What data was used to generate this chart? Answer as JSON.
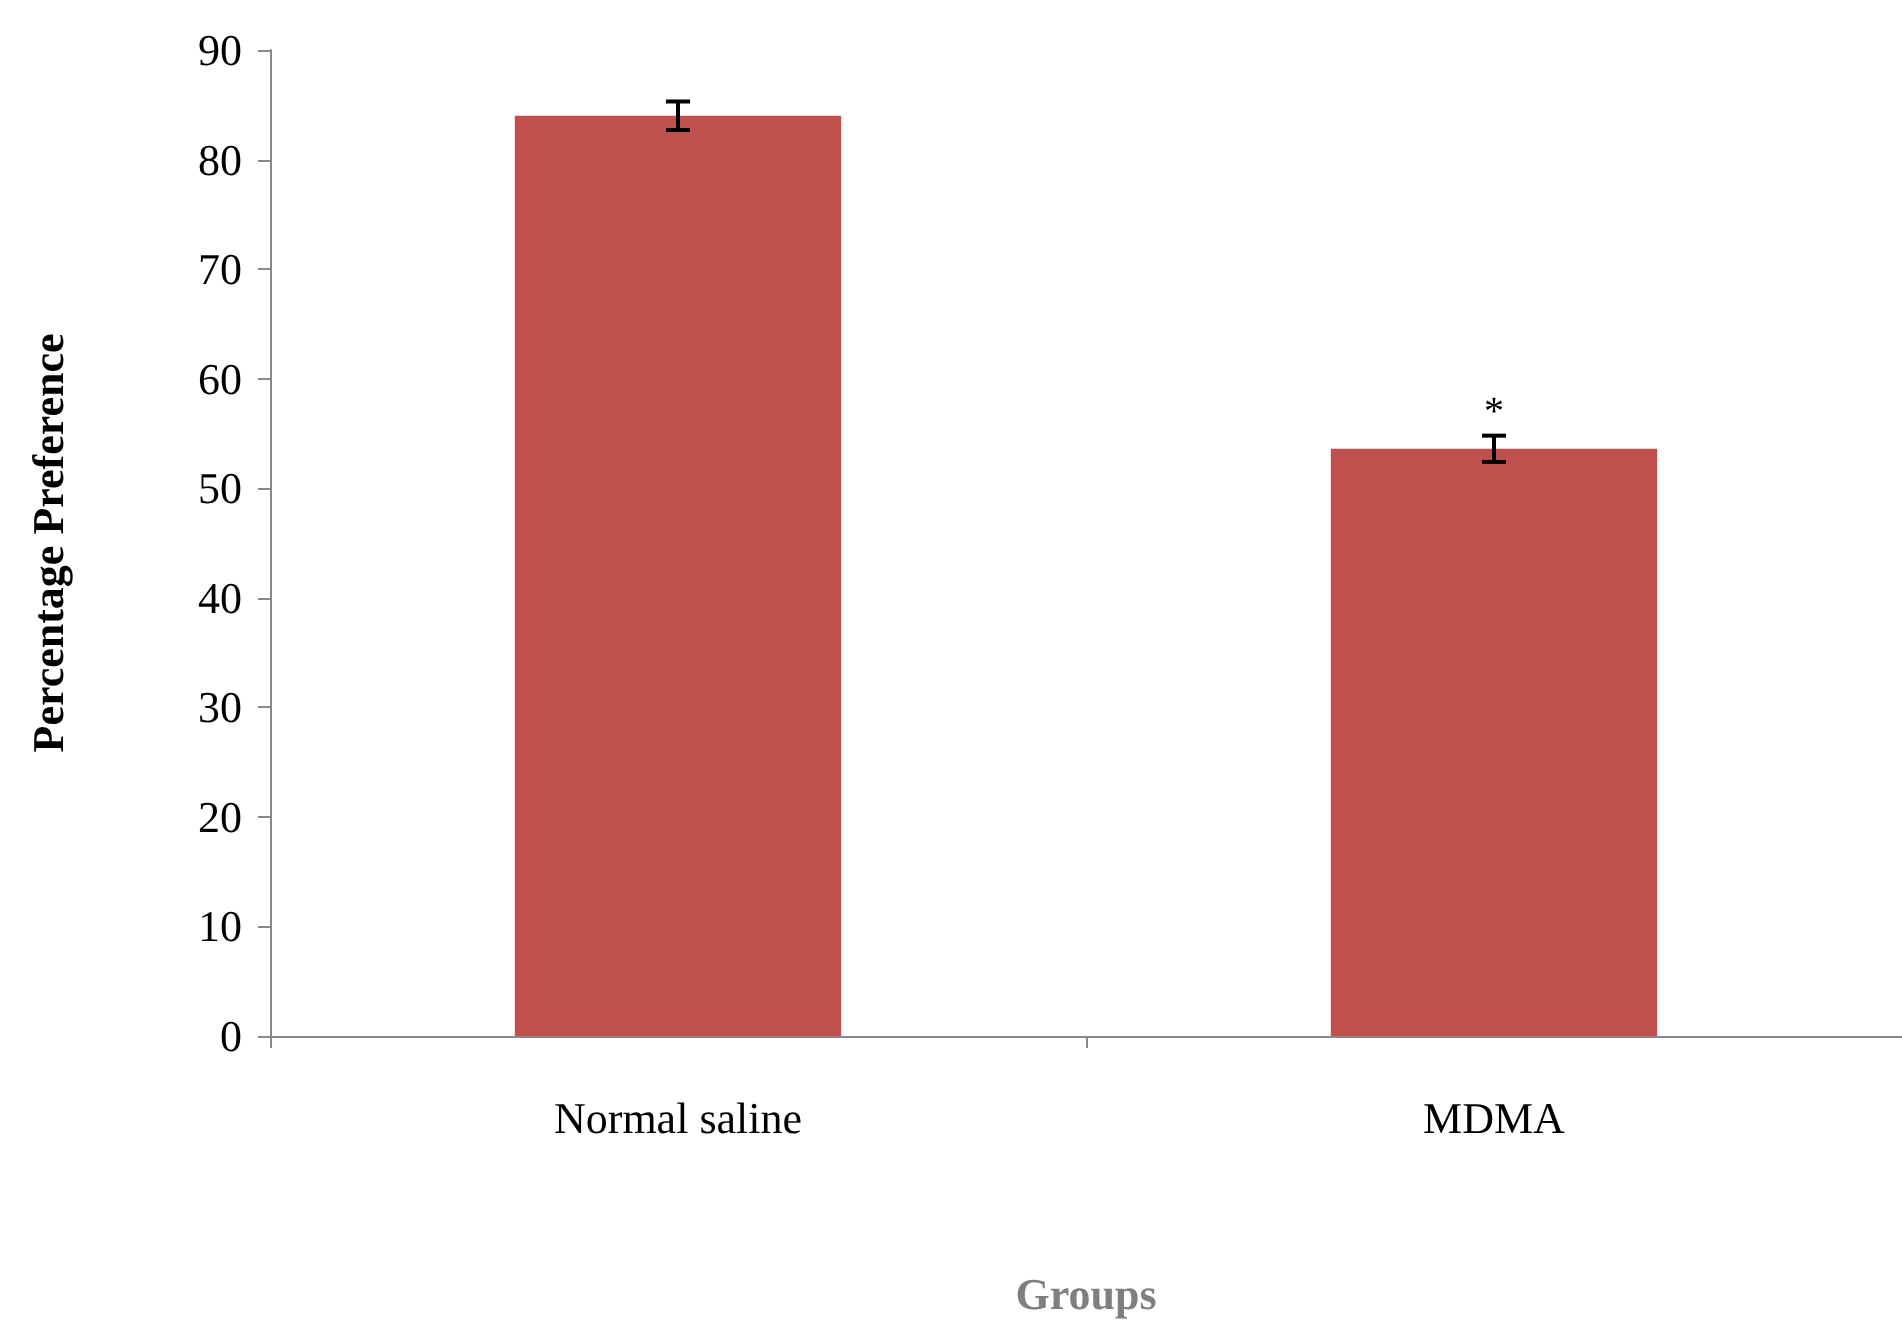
{
  "chart_data": {
    "type": "bar",
    "xlabel": "Groups",
    "ylabel": "Percentage Preference",
    "categories": [
      "Normal saline",
      "MDMA"
    ],
    "values": [
      84,
      53.6
    ],
    "errors": [
      1.3,
      1.2
    ],
    "color": "#c0504d",
    "ylim": [
      0,
      90
    ],
    "yticks": [
      0,
      10,
      20,
      30,
      40,
      50,
      60,
      70,
      80,
      90
    ],
    "grid": false,
    "annotations": [
      "*"
    ]
  }
}
